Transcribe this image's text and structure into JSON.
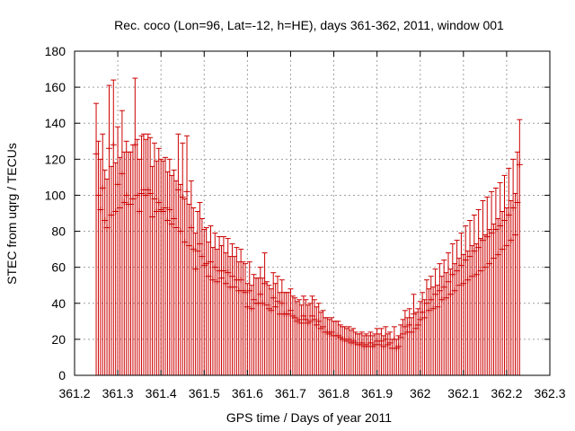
{
  "chart_data": {
    "type": "scatter",
    "title": "Rec. coco (Lon=96, Lat=-12, h=HE), days 361-362, 2011, window 001",
    "xlabel": "GPS time / Days of year 2011",
    "ylabel": "STEC from uqrg / TECUs",
    "xlim": [
      361.2,
      362.3
    ],
    "ylim": [
      0,
      180
    ],
    "xticks": [
      361.2,
      361.3,
      361.4,
      361.5,
      361.6,
      361.7,
      361.8,
      361.9,
      362.0,
      362.1,
      362.2,
      362.3
    ],
    "xtick_labels": [
      "361.2",
      "361.3",
      "361.4",
      "361.5",
      "361.6",
      "361.7",
      "361.8",
      "361.9",
      "362",
      "362.1",
      "362.2",
      "362.3"
    ],
    "yticks": [
      0,
      20,
      40,
      60,
      80,
      100,
      120,
      140,
      160,
      180
    ],
    "ytick_labels": [
      "0",
      "20",
      "40",
      "60",
      "80",
      "100",
      "120",
      "140",
      "160",
      "180"
    ],
    "grid": true,
    "marker": "plus with error bar to zero",
    "series_color": "#cc0000",
    "series": [
      {
        "x": [
          361.25,
          361.255,
          361.26,
          361.265,
          361.27,
          361.275,
          361.28,
          361.285,
          361.29,
          361.295,
          361.3,
          361.305,
          361.31,
          361.315,
          361.32,
          361.325,
          361.33,
          361.335,
          361.34,
          361.345,
          361.35,
          361.355,
          361.36,
          361.365,
          361.37,
          361.375,
          361.38,
          361.385,
          361.39,
          361.395,
          361.4,
          361.405,
          361.41,
          361.415,
          361.42,
          361.425,
          361.43,
          361.435,
          361.44,
          361.445,
          361.45,
          361.455,
          361.46,
          361.465,
          361.47,
          361.475,
          361.48,
          361.485,
          361.49,
          361.495,
          361.5,
          361.505,
          361.51,
          361.515,
          361.52,
          361.525,
          361.53,
          361.535,
          361.54,
          361.545,
          361.55,
          361.555,
          361.56,
          361.565,
          361.57,
          361.575,
          361.58,
          361.585,
          361.59,
          361.595,
          361.6,
          361.605,
          361.61,
          361.615,
          361.62,
          361.625,
          361.63,
          361.635,
          361.64,
          361.645,
          361.65,
          361.655,
          361.66,
          361.665,
          361.67,
          361.675,
          361.68,
          361.685,
          361.69,
          361.695,
          361.7,
          361.705,
          361.71,
          361.715,
          361.72,
          361.725,
          361.73,
          361.735,
          361.74,
          361.745,
          361.75,
          361.755,
          361.76,
          361.765,
          361.77,
          361.775,
          361.78,
          361.785,
          361.79,
          361.795,
          361.8,
          361.805,
          361.81,
          361.815,
          361.82,
          361.825,
          361.83,
          361.835,
          361.84,
          361.845,
          361.85,
          361.855,
          361.86,
          361.865,
          361.87,
          361.875,
          361.88,
          361.885,
          361.89,
          361.895,
          361.9,
          361.905,
          361.91,
          361.915,
          361.92,
          361.925,
          361.93,
          361.935,
          361.94,
          361.945,
          361.95,
          361.955,
          361.96,
          361.965,
          361.97,
          361.975,
          361.98,
          361.985,
          361.99,
          361.995,
          362.0,
          362.005,
          362.01,
          362.015,
          362.02,
          362.025,
          362.03,
          362.035,
          362.04,
          362.045,
          362.05,
          362.055,
          362.06,
          362.065,
          362.07,
          362.075,
          362.08,
          362.085,
          362.09,
          362.095,
          362.1,
          362.105,
          362.11,
          362.115,
          362.12,
          362.125,
          362.13,
          362.135,
          362.14,
          362.145,
          362.15,
          362.155,
          362.16,
          362.165,
          362.17,
          362.175,
          362.18,
          362.185,
          362.19,
          362.195,
          362.2,
          362.205,
          362.21,
          362.215,
          362.22,
          362.225,
          362.23
        ],
        "y": [
          123,
          100,
          92,
          104,
          86,
          82,
          126,
          89,
          128,
          91,
          106,
          93,
          112,
          96,
          100,
          95,
          95,
          98,
          128,
          100,
          91,
          101,
          103,
          100,
          103,
          101,
          88,
          98,
          91,
          96,
          92,
          91,
          93,
          86,
          92,
          84,
          87,
          82,
          103,
          80,
          99,
          74,
          102,
          72,
          82,
          70,
          59,
          69,
          73,
          66,
          61,
          62,
          55,
          63,
          53,
          60,
          52,
          58,
          54,
          58,
          51,
          57,
          49,
          55,
          49,
          53,
          47,
          53,
          47,
          46,
          38,
          47,
          37,
          42,
          40,
          40,
          45,
          40,
          51,
          39,
          37,
          36,
          43,
          38,
          41,
          34,
          40,
          34,
          34,
          34,
          36,
          33,
          32,
          30,
          31,
          29,
          33,
          31,
          29,
          30,
          33,
          31,
          28,
          30,
          26,
          27,
          24,
          24,
          23,
          24,
          22,
          22,
          22,
          21,
          20,
          20,
          19,
          20,
          18,
          19,
          18,
          17,
          17,
          18,
          16,
          17,
          16,
          18,
          16,
          17,
          19,
          17,
          19,
          16,
          20,
          17,
          18,
          15,
          20,
          15,
          16,
          21,
          23,
          27,
          24,
          28,
          24,
          34,
          26,
          28,
          31,
          35,
          32,
          40,
          36,
          42,
          37,
          45,
          38,
          47,
          42,
          49,
          43,
          52,
          45,
          56,
          47,
          58,
          50,
          61,
          51,
          64,
          53,
          66,
          55,
          69,
          56,
          71,
          58,
          75,
          60,
          77,
          62,
          79,
          65,
          81,
          67,
          83,
          70,
          86,
          72,
          89,
          75,
          93,
          78,
          96,
          117
        ],
        "err": [
          28,
          30,
          28,
          30,
          28,
          27,
          35,
          27,
          36,
          27,
          32,
          28,
          35,
          28,
          30,
          29,
          29,
          30,
          37,
          31,
          29,
          32,
          31,
          31,
          31,
          31,
          28,
          31,
          28,
          30,
          28,
          28,
          28,
          27,
          28,
          27,
          27,
          26,
          31,
          26,
          30,
          24,
          31,
          23,
          26,
          23,
          20,
          22,
          23,
          21,
          20,
          20,
          19,
          20,
          18,
          19,
          18,
          19,
          18,
          19,
          17,
          19,
          17,
          18,
          17,
          18,
          16,
          17,
          16,
          16,
          13,
          16,
          13,
          14,
          14,
          14,
          15,
          14,
          17,
          13,
          13,
          12,
          14,
          13,
          14,
          12,
          13,
          12,
          12,
          12,
          12,
          11,
          11,
          11,
          11,
          10,
          11,
          11,
          10,
          10,
          11,
          11,
          10,
          10,
          9,
          9,
          8,
          8,
          8,
          8,
          8,
          8,
          8,
          7,
          7,
          7,
          7,
          7,
          7,
          7,
          6,
          6,
          6,
          6,
          6,
          6,
          6,
          6,
          6,
          6,
          7,
          6,
          7,
          6,
          7,
          6,
          6,
          5,
          7,
          5,
          6,
          7,
          8,
          9,
          8,
          9,
          8,
          11,
          9,
          9,
          10,
          11,
          10,
          13,
          12,
          13,
          12,
          14,
          12,
          15,
          13,
          15,
          14,
          16,
          14,
          17,
          15,
          17,
          15,
          18,
          16,
          19,
          16,
          20,
          17,
          20,
          17,
          21,
          18,
          22,
          18,
          22,
          19,
          23,
          19,
          23,
          20,
          24,
          21,
          25,
          21,
          26,
          22,
          27,
          23,
          28,
          25
        ]
      }
    ]
  }
}
